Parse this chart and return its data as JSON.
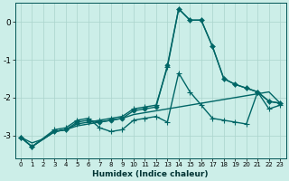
{
  "xlabel": "Humidex (Indice chaleur)",
  "ylabel": "",
  "bg_color": "#cceee8",
  "line_color": "#006666",
  "grid_color": "#aad4cc",
  "xlim": [
    -0.5,
    23.5
  ],
  "ylim": [
    -3.6,
    0.5
  ],
  "xticks": [
    0,
    1,
    2,
    3,
    4,
    5,
    6,
    7,
    8,
    9,
    10,
    11,
    12,
    13,
    14,
    15,
    16,
    17,
    18,
    19,
    20,
    21,
    22,
    23
  ],
  "yticks": [
    0,
    -1,
    -2,
    -3
  ],
  "series": [
    {
      "x": [
        0,
        1,
        2,
        3,
        4,
        5,
        6,
        7,
        8,
        9,
        10,
        11,
        12,
        13,
        14,
        15,
        16,
        17,
        18,
        19,
        20,
        21,
        22,
        23
      ],
      "y": [
        -3.05,
        -3.2,
        -3.1,
        -2.9,
        -2.85,
        -2.75,
        -2.7,
        -2.65,
        -2.6,
        -2.55,
        -2.45,
        -2.4,
        -2.35,
        -2.3,
        -2.25,
        -2.2,
        -2.15,
        -2.1,
        -2.05,
        -2.0,
        -1.95,
        -1.9,
        -1.85,
        -2.15
      ],
      "style": "-",
      "marker": null,
      "lw": 1.0
    },
    {
      "x": [
        0,
        1,
        3,
        4,
        5,
        6,
        7,
        8,
        9,
        10,
        11,
        12,
        13,
        14,
        15,
        16,
        17,
        18,
        19,
        20,
        21,
        22,
        23
      ],
      "y": [
        -3.05,
        -3.3,
        -2.9,
        -2.85,
        -2.7,
        -2.65,
        -2.6,
        -2.55,
        -2.5,
        -2.3,
        -2.25,
        -2.2,
        -1.2,
        0.35,
        0.05,
        0.05,
        -0.65,
        -1.5,
        -1.65,
        -1.75,
        -1.85,
        -2.1,
        -2.15
      ],
      "style": "-",
      "marker": "+",
      "lw": 1.0
    },
    {
      "x": [
        0,
        1,
        3,
        4,
        5,
        6,
        7,
        8,
        9,
        10,
        11,
        12,
        13,
        14,
        15,
        16,
        17,
        18,
        19,
        20,
        21,
        22,
        23
      ],
      "y": [
        -3.05,
        -3.3,
        -2.9,
        -2.85,
        -2.65,
        -2.6,
        -2.65,
        -2.6,
        -2.55,
        -2.35,
        -2.3,
        -2.25,
        -1.15,
        0.35,
        0.05,
        0.05,
        -0.65,
        -1.5,
        -1.65,
        -1.75,
        -1.85,
        -2.1,
        -2.15
      ],
      "style": "-",
      "marker": "D",
      "lw": 1.0
    },
    {
      "x": [
        0,
        1,
        3,
        4,
        5,
        6,
        7,
        8,
        9,
        10,
        11,
        12,
        13,
        14,
        15,
        16,
        17,
        18,
        19,
        20,
        21,
        22,
        23
      ],
      "y": [
        -3.05,
        -3.3,
        -2.85,
        -2.8,
        -2.6,
        -2.55,
        -2.8,
        -2.9,
        -2.85,
        -2.6,
        -2.55,
        -2.5,
        -2.65,
        -1.35,
        -1.85,
        -2.2,
        -2.55,
        -2.6,
        -2.65,
        -2.7,
        -1.85,
        -2.3,
        -2.2
      ],
      "style": "-",
      "marker": "+",
      "lw": 1.0
    }
  ]
}
